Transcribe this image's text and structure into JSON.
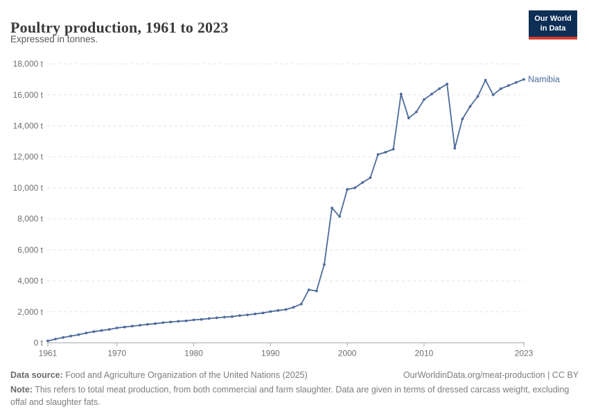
{
  "header": {
    "title": "Poultry production, 1961 to 2023",
    "subtitle": "Expressed in tonnes.",
    "logo": {
      "line1": "Our World",
      "line2": "in Data",
      "bg_color": "#0d2e55",
      "bar_color": "#d63a2f"
    }
  },
  "chart_data": {
    "type": "line",
    "title": "Poultry production, 1961 to 2023",
    "unit": "t",
    "grid": "horizontal-dashed",
    "xlim": [
      1961,
      2023
    ],
    "ylim": [
      0,
      18000
    ],
    "x_ticks": [
      1961,
      1970,
      1980,
      1990,
      2000,
      2010,
      2023
    ],
    "y_ticks": [
      0,
      2000,
      4000,
      6000,
      8000,
      10000,
      12000,
      14000,
      16000,
      18000
    ],
    "x": [
      1961,
      1962,
      1963,
      1964,
      1965,
      1966,
      1967,
      1968,
      1969,
      1970,
      1971,
      1972,
      1973,
      1974,
      1975,
      1976,
      1977,
      1978,
      1979,
      1980,
      1981,
      1982,
      1983,
      1984,
      1985,
      1986,
      1987,
      1988,
      1989,
      1990,
      1991,
      1992,
      1993,
      1994,
      1995,
      1996,
      1997,
      1998,
      1999,
      2000,
      2001,
      2002,
      2003,
      2004,
      2005,
      2006,
      2007,
      2008,
      2009,
      2010,
      2011,
      2012,
      2013,
      2014,
      2015,
      2016,
      2017,
      2018,
      2019,
      2020,
      2021,
      2022,
      2023
    ],
    "series": [
      {
        "name": "Namibia",
        "color": "#4c6a9c",
        "values": [
          125,
          245,
          350,
          440,
          530,
          634,
          723,
          794,
          870,
          960,
          1018,
          1080,
          1138,
          1196,
          1241,
          1303,
          1348,
          1390,
          1420,
          1482,
          1510,
          1572,
          1616,
          1661,
          1690,
          1763,
          1808,
          1866,
          1929,
          2018,
          2089,
          2150,
          2300,
          2500,
          3420,
          3350,
          5050,
          8700,
          8150,
          9900,
          10000,
          10350,
          10650,
          12150,
          12300,
          12500,
          16050,
          14500,
          14900,
          15700,
          16050,
          16400,
          16700,
          12550,
          14450,
          15250,
          15900,
          16950,
          16000,
          16400,
          16600,
          16800,
          17000
        ]
      }
    ],
    "colors": {
      "gridline": "#e2e2e2",
      "axis": "#a8a8a8",
      "tick_label": "#6e6e6e"
    }
  },
  "footer": {
    "data_source_label": "Data source:",
    "data_source": "Food and Agriculture Organization of the United Nations (2025)",
    "link": "OurWorldinData.org/meat-production | CC BY",
    "note_label": "Note:",
    "note": "This refers to total meat production, from both commercial and farm slaughter. Data are given in terms of dressed carcass weight, excluding offal and slaughter fats."
  }
}
